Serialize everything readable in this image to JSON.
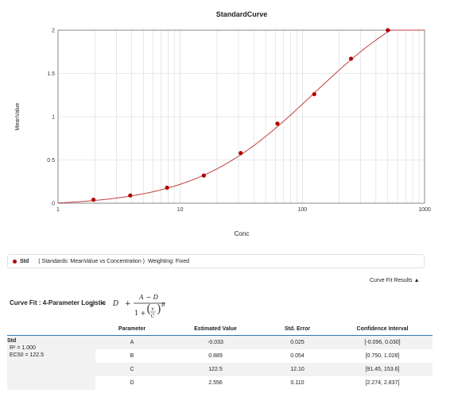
{
  "chart_data": {
    "type": "scatter",
    "title": "StandardCurve",
    "xlabel": "Conc",
    "ylabel": "MeanValue",
    "x_scale": "log",
    "xlim": [
      1,
      1000
    ],
    "ylim": [
      0,
      2
    ],
    "x_ticks": [
      "1",
      "10",
      "100",
      "1000"
    ],
    "y_ticks": [
      "0",
      "0.5",
      "1",
      "1.5",
      "2"
    ],
    "grid": true,
    "series": [
      {
        "name": "Std",
        "x": [
          1.95,
          3.9,
          7.8,
          15.6,
          31.25,
          62.5,
          125,
          250,
          500
        ],
        "y": [
          0.04,
          0.09,
          0.18,
          0.32,
          0.58,
          0.92,
          1.26,
          1.67,
          2.0
        ]
      }
    ],
    "fit": {
      "model": "4PL",
      "A": -0.033,
      "B": 0.889,
      "C": 122.5,
      "D": 2.556
    },
    "colors": {
      "points": "#b00000",
      "curve": "#c04040",
      "grid": "#d8d8d8",
      "axis": "#888888"
    }
  },
  "legend": {
    "series_name": "Std",
    "description": "( Standards: MeanValue vs Concentration )",
    "weighting": "Weighting: Fixed"
  },
  "results_toggle": "Curve Fit Results ▲",
  "fit_title": "Curve Fit : 4-Parameter Logistic",
  "formula": {
    "y": "y",
    "eq": "=",
    "d": "D",
    "plus": "+",
    "numerator": "A − D",
    "one_plus": "1 +",
    "x": "x",
    "c": "C",
    "b": "B"
  },
  "table": {
    "headers": [
      "Parameter",
      "Estimated Value",
      "Std. Error",
      "Confidence Interval"
    ],
    "std": {
      "name": "Std",
      "r2": "R² = 1.000",
      "ec50": "EC50 = 122.5"
    },
    "rows": [
      [
        "A",
        "-0.033",
        "0.025",
        "[-0.096, 0.030]"
      ],
      [
        "B",
        "0.889",
        "0.054",
        "[0.750, 1.028]"
      ],
      [
        "C",
        "122.5",
        "12.10",
        "[91.45, 153.6]"
      ],
      [
        "D",
        "2.556",
        "0.110",
        "[2.274, 2.837]"
      ]
    ]
  }
}
